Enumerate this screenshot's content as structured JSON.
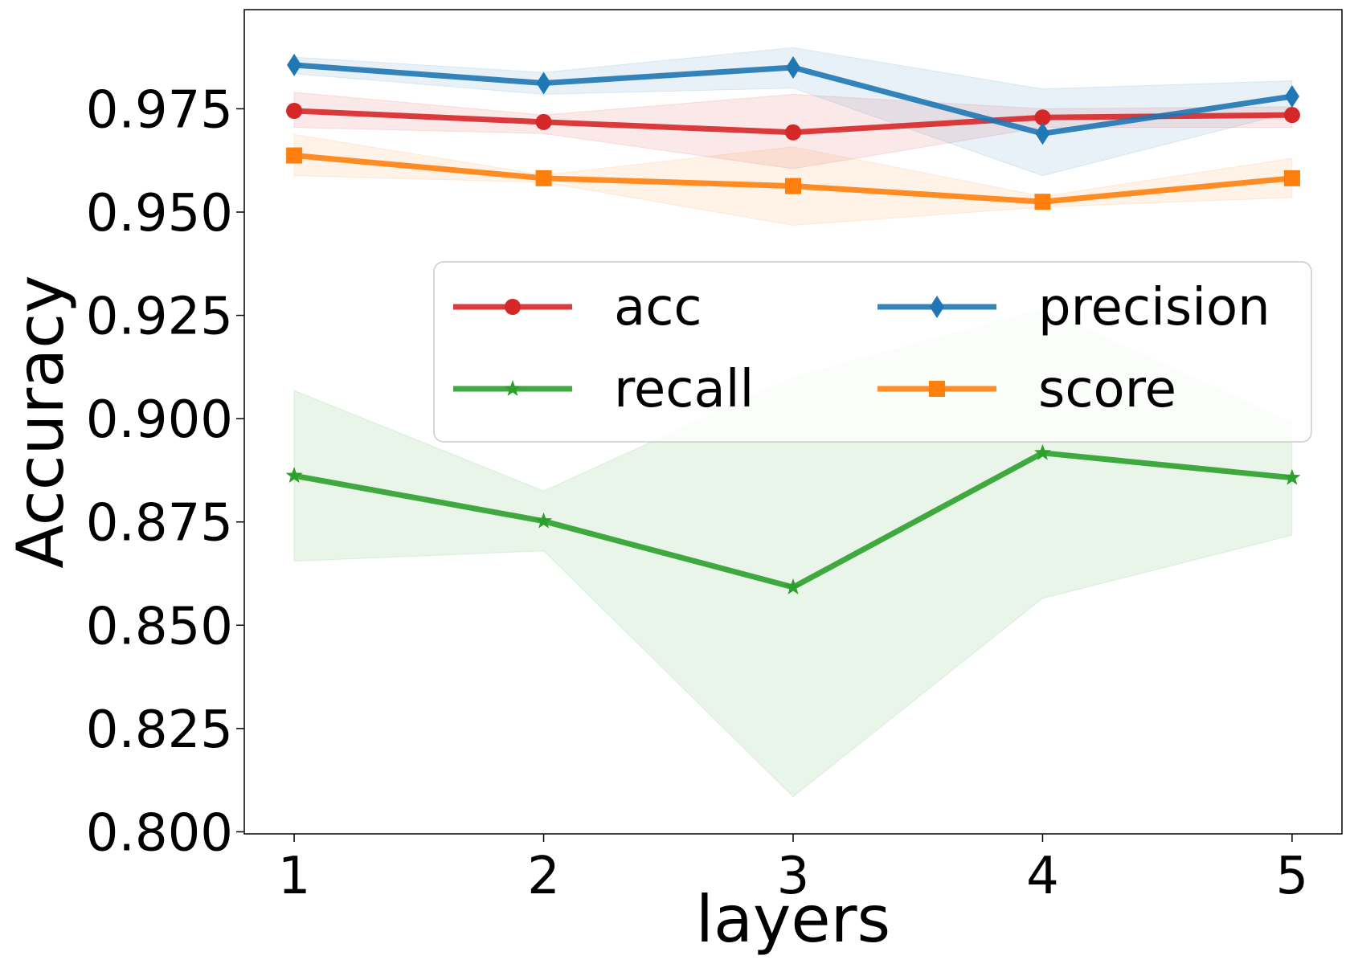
{
  "chart_data": {
    "type": "line",
    "title": "",
    "xlabel": "layers",
    "ylabel": "Accuracy",
    "x": [
      1,
      2,
      3,
      4,
      5
    ],
    "xlim": [
      0.8,
      5.2
    ],
    "ylim": [
      0.7995,
      0.999
    ],
    "yticks": [
      0.8,
      0.825,
      0.85,
      0.875,
      0.9,
      0.925,
      0.95,
      0.975
    ],
    "ytick_labels": [
      "0.800",
      "0.825",
      "0.850",
      "0.875",
      "0.900",
      "0.925",
      "0.950",
      "0.975"
    ],
    "xticks": [
      1,
      2,
      3,
      4,
      5
    ],
    "xtick_labels": [
      "1",
      "2",
      "3",
      "4",
      "5"
    ],
    "grid": false,
    "legend": {
      "placement": "center-right",
      "columns": 2
    },
    "series": [
      {
        "name": "acc",
        "color": "#d62728",
        "marker": "circle",
        "values": [
          0.9745,
          0.9718,
          0.9693,
          0.9729,
          0.9735
        ],
        "band_upper": [
          0.979,
          0.9735,
          0.9785,
          0.975,
          0.9755
        ],
        "band_lower": [
          0.9705,
          0.969,
          0.9605,
          0.9705,
          0.9705
        ]
      },
      {
        "name": "precision",
        "color": "#1f77b4",
        "marker": "diamond",
        "values": [
          0.9856,
          0.9812,
          0.985,
          0.969,
          0.978
        ],
        "band_upper": [
          0.9875,
          0.9838,
          0.9898,
          0.9798,
          0.9818
        ],
        "band_lower": [
          0.9835,
          0.9785,
          0.98,
          0.9588,
          0.9742
        ]
      },
      {
        "name": "recall",
        "color": "#2ca02c",
        "marker": "star",
        "values": [
          0.8862,
          0.8752,
          0.8592,
          0.8917,
          0.8857
        ],
        "band_upper": [
          0.9068,
          0.8825,
          0.91,
          0.9265,
          0.899
        ],
        "band_lower": [
          0.8655,
          0.868,
          0.8085,
          0.8565,
          0.8718
        ]
      },
      {
        "name": "score",
        "color": "#ff7f0e",
        "marker": "square",
        "values": [
          0.9637,
          0.9582,
          0.9563,
          0.9525,
          0.9582
        ],
        "band_upper": [
          0.9688,
          0.959,
          0.9658,
          0.9538,
          0.963
        ],
        "band_lower": [
          0.9588,
          0.9572,
          0.9468,
          0.9512,
          0.9535
        ]
      }
    ]
  }
}
